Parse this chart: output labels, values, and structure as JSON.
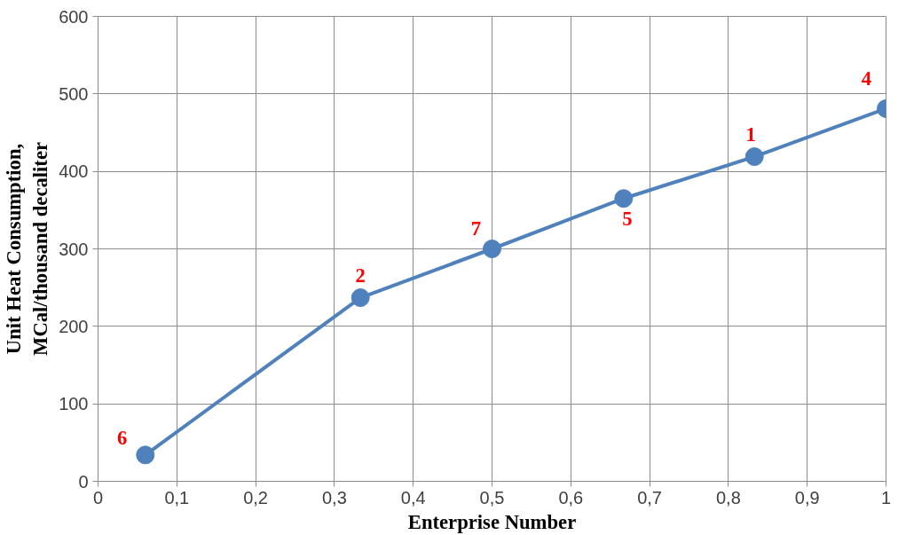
{
  "chart_data": {
    "type": "line",
    "xlabel": "Enterprise Number",
    "ylabel": "Unit Heat Consumption,\nMCal/thousand decaliter",
    "x": [
      0.06,
      0.333,
      0.5,
      0.667,
      0.833,
      1.0
    ],
    "series": [
      {
        "color": "#4f81bd",
        "values": [
          34,
          237,
          300,
          365,
          419,
          481
        ]
      }
    ],
    "xlim": [
      0,
      1
    ],
    "ylim": [
      0,
      600
    ],
    "xticks": [
      0,
      {
        "value": 0.1,
        "label": "0,1"
      },
      {
        "value": 0.2,
        "label": "0,2"
      },
      {
        "value": 0.3,
        "label": "0,3"
      },
      {
        "value": 0.4,
        "label": "0,4"
      },
      {
        "value": 0.5,
        "label": "0,5"
      },
      {
        "value": 0.6,
        "label": "0,6"
      },
      {
        "value": 0.7,
        "label": "0,7"
      },
      {
        "value": 0.8,
        "label": "0,8"
      },
      {
        "value": 0.9,
        "label": "0,9"
      },
      1
    ],
    "yticks": [
      0,
      100,
      200,
      300,
      400,
      500,
      600
    ],
    "grid": true,
    "marker": "circle",
    "line_style": "solid",
    "annotations": [
      {
        "text": "6",
        "x": 0.06,
        "y": 34
      },
      {
        "text": "2",
        "x": 0.333,
        "y": 237
      },
      {
        "text": "7",
        "x": 0.5,
        "y": 300
      },
      {
        "text": "5",
        "x": 0.667,
        "y": 365
      },
      {
        "text": "1",
        "x": 0.833,
        "y": 419
      },
      {
        "text": "4",
        "x": 1.0,
        "y": 481
      }
    ]
  }
}
